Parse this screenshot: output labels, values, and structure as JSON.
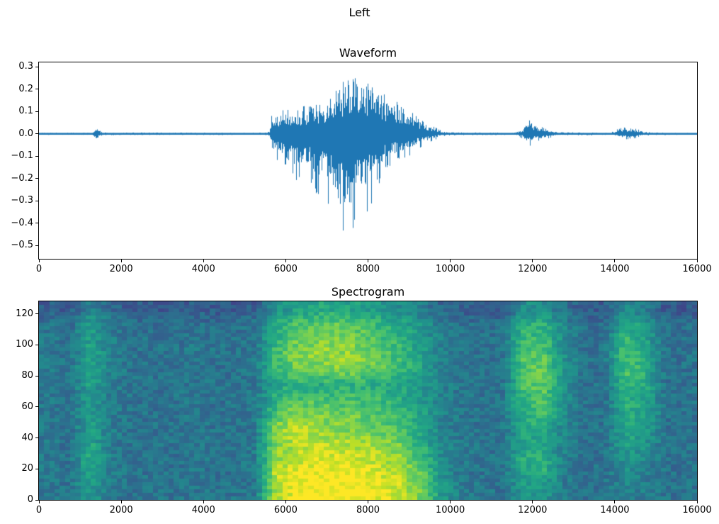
{
  "figure_title": "Left",
  "chart_data": [
    {
      "type": "line",
      "title": "Waveform",
      "line_color": "#1f77b4",
      "xlim": [
        0,
        16000
      ],
      "ylim": [
        -0.56,
        0.32
      ],
      "x_ticks": [
        [
          0,
          "0"
        ],
        [
          2000,
          "2000"
        ],
        [
          4000,
          "4000"
        ],
        [
          6000,
          "6000"
        ],
        [
          8000,
          "8000"
        ],
        [
          10000,
          "10000"
        ],
        [
          12000,
          "12000"
        ],
        [
          14000,
          "14000"
        ],
        [
          16000,
          "16000"
        ]
      ],
      "y_ticks": [
        [
          0.3,
          "0.3"
        ],
        [
          0.2,
          "0.2"
        ],
        [
          0.1,
          "0.1"
        ],
        [
          0.0,
          "0.0"
        ],
        [
          -0.1,
          "−0.1"
        ],
        [
          -0.2,
          "−0.2"
        ],
        [
          -0.3,
          "−0.3"
        ],
        [
          -0.4,
          "−0.4"
        ],
        [
          -0.5,
          "−0.5"
        ]
      ],
      "envelope_format": "[sample_x, positive_peak, negative_peak_magnitude]",
      "envelope": [
        [
          0,
          0.005,
          0.005
        ],
        [
          1300,
          0.005,
          0.005
        ],
        [
          1380,
          0.03,
          0.03
        ],
        [
          1430,
          0.035,
          0.03
        ],
        [
          1500,
          0.01,
          0.01
        ],
        [
          1600,
          0.006,
          0.006
        ],
        [
          5500,
          0.005,
          0.005
        ],
        [
          5600,
          0.01,
          0.01
        ],
        [
          5650,
          0.09,
          0.09
        ],
        [
          5750,
          0.1,
          0.12
        ],
        [
          5900,
          0.11,
          0.13
        ],
        [
          6100,
          0.12,
          0.2
        ],
        [
          6300,
          0.12,
          0.22
        ],
        [
          6500,
          0.13,
          0.2
        ],
        [
          6700,
          0.14,
          0.26
        ],
        [
          6900,
          0.14,
          0.3
        ],
        [
          7100,
          0.16,
          0.36
        ],
        [
          7300,
          0.22,
          0.5
        ],
        [
          7500,
          0.26,
          0.52
        ],
        [
          7650,
          0.28,
          0.47
        ],
        [
          7800,
          0.23,
          0.36
        ],
        [
          8000,
          0.24,
          0.38
        ],
        [
          8200,
          0.21,
          0.26
        ],
        [
          8400,
          0.19,
          0.18
        ],
        [
          8600,
          0.17,
          0.15
        ],
        [
          8800,
          0.15,
          0.12
        ],
        [
          9000,
          0.11,
          0.1
        ],
        [
          9200,
          0.08,
          0.07
        ],
        [
          9400,
          0.05,
          0.05
        ],
        [
          9600,
          0.035,
          0.03
        ],
        [
          9800,
          0.015,
          0.012
        ],
        [
          10000,
          0.007,
          0.007
        ],
        [
          11500,
          0.005,
          0.005
        ],
        [
          11750,
          0.02,
          0.02
        ],
        [
          11850,
          0.06,
          0.05
        ],
        [
          11950,
          0.07,
          0.06
        ],
        [
          12050,
          0.05,
          0.04
        ],
        [
          12150,
          0.04,
          0.035
        ],
        [
          12250,
          0.04,
          0.03
        ],
        [
          12400,
          0.02,
          0.02
        ],
        [
          12600,
          0.008,
          0.008
        ],
        [
          13900,
          0.005,
          0.005
        ],
        [
          14050,
          0.02,
          0.015
        ],
        [
          14200,
          0.03,
          0.025
        ],
        [
          14350,
          0.03,
          0.025
        ],
        [
          14500,
          0.025,
          0.02
        ],
        [
          14700,
          0.012,
          0.01
        ],
        [
          14900,
          0.006,
          0.006
        ],
        [
          16000,
          0.004,
          0.004
        ]
      ]
    },
    {
      "type": "heatmap",
      "title": "Spectrogram",
      "colormap": "viridis",
      "colormap_stops": [
        "#440154",
        "#482475",
        "#404388",
        "#345e8d",
        "#29788e",
        "#21918c",
        "#22a884",
        "#44bf70",
        "#7ad151",
        "#bddf26",
        "#fde725"
      ],
      "xlim": [
        0,
        16000
      ],
      "ylim": [
        0,
        128
      ],
      "x_ticks": [
        [
          0,
          "0"
        ],
        [
          2000,
          "2000"
        ],
        [
          4000,
          "4000"
        ],
        [
          6000,
          "6000"
        ],
        [
          8000,
          "8000"
        ],
        [
          10000,
          "10000"
        ],
        [
          12000,
          "12000"
        ],
        [
          14000,
          "14000"
        ],
        [
          16000,
          "16000"
        ]
      ],
      "y_ticks": [
        [
          0,
          "0"
        ],
        [
          20,
          "20"
        ],
        [
          40,
          "40"
        ],
        [
          60,
          "60"
        ],
        [
          80,
          "80"
        ],
        [
          100,
          "100"
        ],
        [
          120,
          "120"
        ]
      ],
      "grid": {
        "x_range": [
          0,
          16000
        ],
        "n_cols": 32,
        "y_range": [
          0,
          130
        ],
        "n_rows": 13,
        "row_order": "bottom-to-top",
        "values": [
          [
            0.4,
            0.38,
            0.52,
            0.4,
            0.38,
            0.38,
            0.38,
            0.4,
            0.38,
            0.38,
            0.4,
            0.88,
            0.97,
            1.0,
            1.0,
            1.0,
            0.97,
            0.92,
            0.8,
            0.55,
            0.42,
            0.4,
            0.38,
            0.5,
            0.52,
            0.42,
            0.38,
            0.38,
            0.44,
            0.42,
            0.38,
            0.38
          ],
          [
            0.4,
            0.38,
            0.58,
            0.42,
            0.38,
            0.38,
            0.38,
            0.4,
            0.38,
            0.38,
            0.4,
            0.9,
            0.97,
            1.0,
            1.0,
            1.0,
            0.95,
            0.9,
            0.78,
            0.52,
            0.4,
            0.38,
            0.38,
            0.55,
            0.6,
            0.42,
            0.38,
            0.38,
            0.46,
            0.42,
            0.38,
            0.38
          ],
          [
            0.4,
            0.38,
            0.62,
            0.44,
            0.38,
            0.38,
            0.38,
            0.4,
            0.38,
            0.38,
            0.42,
            0.85,
            0.92,
            0.95,
            0.97,
            0.95,
            0.9,
            0.85,
            0.72,
            0.5,
            0.4,
            0.38,
            0.38,
            0.62,
            0.65,
            0.44,
            0.38,
            0.38,
            0.5,
            0.45,
            0.38,
            0.38
          ],
          [
            0.4,
            0.38,
            0.6,
            0.42,
            0.38,
            0.38,
            0.38,
            0.42,
            0.38,
            0.38,
            0.42,
            0.8,
            0.88,
            0.9,
            0.9,
            0.88,
            0.85,
            0.8,
            0.65,
            0.48,
            0.4,
            0.38,
            0.38,
            0.55,
            0.58,
            0.44,
            0.38,
            0.38,
            0.55,
            0.5,
            0.38,
            0.38
          ],
          [
            0.4,
            0.38,
            0.56,
            0.42,
            0.38,
            0.38,
            0.38,
            0.4,
            0.38,
            0.38,
            0.4,
            0.82,
            0.92,
            0.85,
            0.82,
            0.8,
            0.78,
            0.72,
            0.6,
            0.46,
            0.4,
            0.38,
            0.38,
            0.58,
            0.6,
            0.46,
            0.38,
            0.38,
            0.6,
            0.55,
            0.38,
            0.38
          ],
          [
            0.4,
            0.38,
            0.55,
            0.42,
            0.38,
            0.38,
            0.38,
            0.4,
            0.38,
            0.38,
            0.4,
            0.72,
            0.85,
            0.8,
            0.78,
            0.76,
            0.72,
            0.68,
            0.58,
            0.45,
            0.4,
            0.38,
            0.38,
            0.62,
            0.68,
            0.48,
            0.38,
            0.38,
            0.62,
            0.58,
            0.38,
            0.38
          ],
          [
            0.4,
            0.38,
            0.55,
            0.42,
            0.38,
            0.38,
            0.38,
            0.4,
            0.38,
            0.38,
            0.4,
            0.62,
            0.72,
            0.72,
            0.72,
            0.7,
            0.68,
            0.62,
            0.55,
            0.44,
            0.4,
            0.38,
            0.38,
            0.66,
            0.72,
            0.5,
            0.38,
            0.38,
            0.62,
            0.58,
            0.38,
            0.38
          ],
          [
            0.4,
            0.38,
            0.56,
            0.42,
            0.38,
            0.38,
            0.38,
            0.4,
            0.38,
            0.38,
            0.4,
            0.58,
            0.62,
            0.6,
            0.62,
            0.62,
            0.6,
            0.58,
            0.52,
            0.44,
            0.4,
            0.38,
            0.38,
            0.7,
            0.76,
            0.52,
            0.38,
            0.38,
            0.66,
            0.6,
            0.38,
            0.38
          ],
          [
            0.4,
            0.38,
            0.58,
            0.44,
            0.38,
            0.38,
            0.38,
            0.4,
            0.38,
            0.38,
            0.4,
            0.66,
            0.78,
            0.8,
            0.82,
            0.8,
            0.75,
            0.68,
            0.58,
            0.45,
            0.4,
            0.38,
            0.38,
            0.72,
            0.78,
            0.52,
            0.38,
            0.38,
            0.72,
            0.62,
            0.38,
            0.38
          ],
          [
            0.4,
            0.38,
            0.58,
            0.44,
            0.38,
            0.38,
            0.38,
            0.4,
            0.38,
            0.38,
            0.4,
            0.68,
            0.8,
            0.83,
            0.85,
            0.82,
            0.76,
            0.68,
            0.58,
            0.45,
            0.4,
            0.38,
            0.38,
            0.7,
            0.74,
            0.5,
            0.38,
            0.38,
            0.7,
            0.6,
            0.38,
            0.38
          ],
          [
            0.4,
            0.38,
            0.56,
            0.42,
            0.38,
            0.38,
            0.38,
            0.4,
            0.38,
            0.38,
            0.4,
            0.64,
            0.76,
            0.8,
            0.8,
            0.78,
            0.72,
            0.64,
            0.55,
            0.44,
            0.4,
            0.38,
            0.38,
            0.66,
            0.7,
            0.48,
            0.38,
            0.38,
            0.66,
            0.56,
            0.38,
            0.38
          ],
          [
            0.38,
            0.36,
            0.55,
            0.42,
            0.36,
            0.36,
            0.36,
            0.38,
            0.36,
            0.36,
            0.38,
            0.6,
            0.7,
            0.74,
            0.74,
            0.72,
            0.66,
            0.6,
            0.52,
            0.42,
            0.38,
            0.36,
            0.36,
            0.6,
            0.64,
            0.46,
            0.36,
            0.36,
            0.6,
            0.52,
            0.36,
            0.36
          ],
          [
            0.3,
            0.28,
            0.45,
            0.34,
            0.28,
            0.28,
            0.28,
            0.3,
            0.28,
            0.28,
            0.3,
            0.48,
            0.55,
            0.58,
            0.58,
            0.56,
            0.52,
            0.48,
            0.42,
            0.34,
            0.3,
            0.28,
            0.28,
            0.48,
            0.5,
            0.36,
            0.28,
            0.28,
            0.46,
            0.4,
            0.28,
            0.28
          ]
        ]
      }
    }
  ]
}
